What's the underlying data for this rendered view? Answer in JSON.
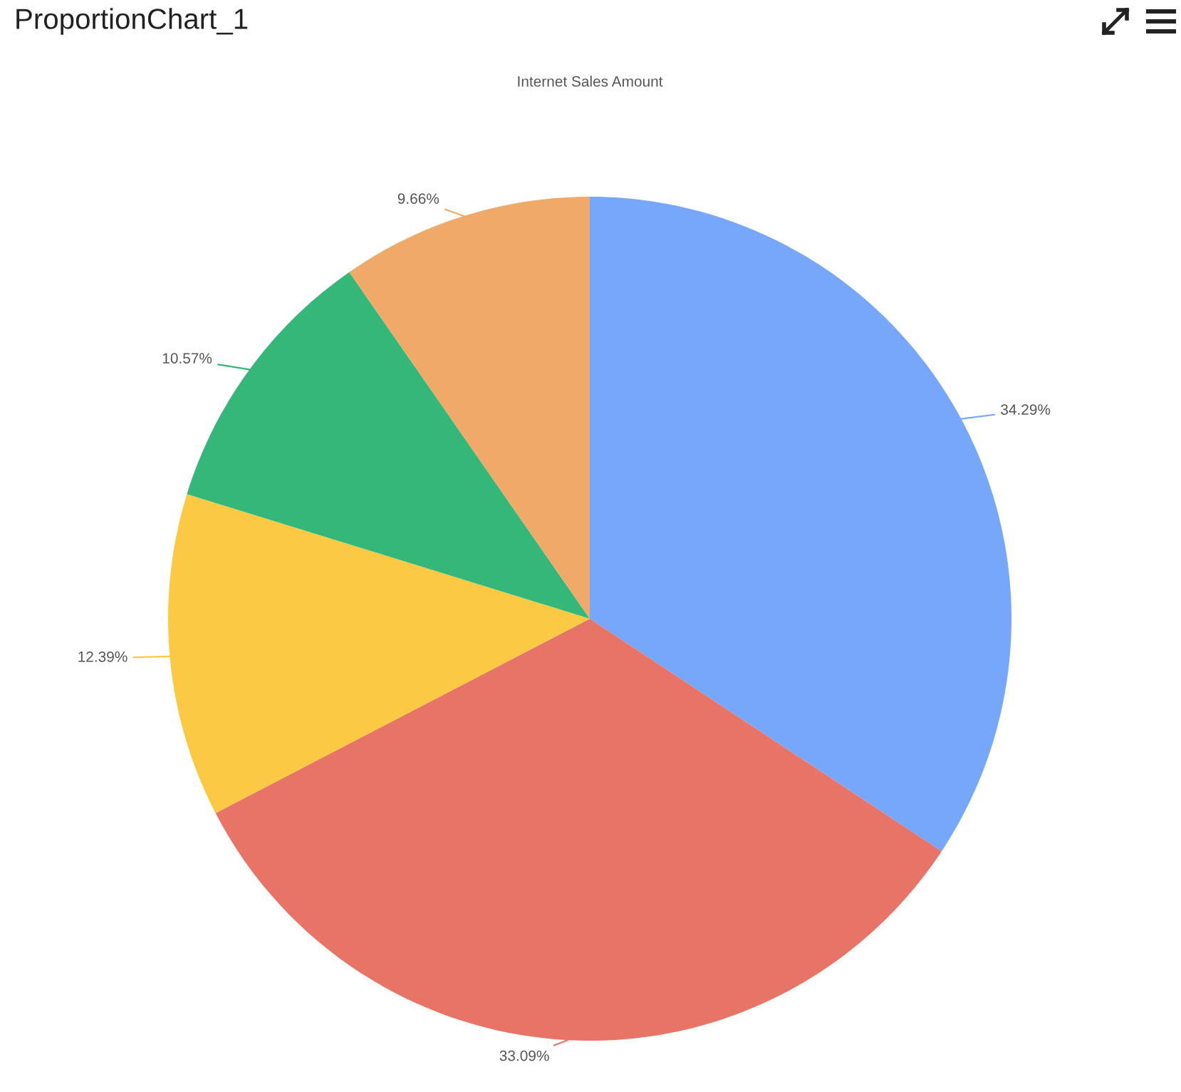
{
  "chart_data": {
    "type": "pie",
    "title": "ProportionChart_1",
    "subtitle": "Internet Sales Amount",
    "categories": [
      null,
      null,
      null,
      null,
      null
    ],
    "values": [
      34.29,
      33.09,
      12.39,
      10.57,
      9.66
    ],
    "colors": [
      "#76a7fa",
      "#e87467",
      "#fbc943",
      "#35b779",
      "#efaa69"
    ],
    "value_labels": [
      "34.29%",
      "33.09%",
      "12.39%",
      "10.57%",
      "9.66%"
    ],
    "legend": false
  }
}
